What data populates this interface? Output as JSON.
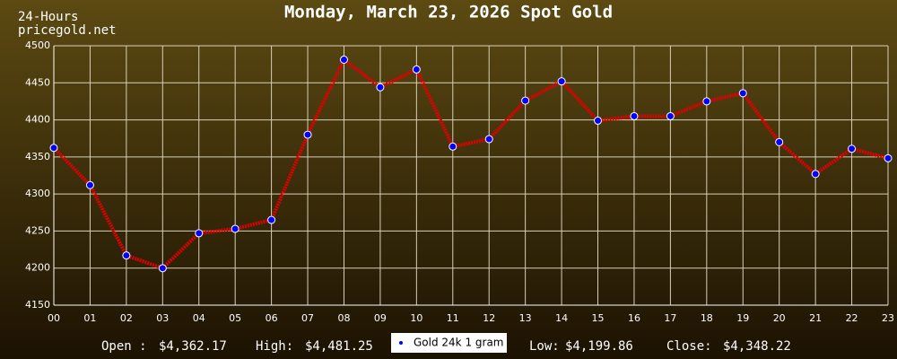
{
  "chart_data": {
    "type": "line",
    "title": "Monday, March 23, 2026 Spot Gold",
    "corner_texts": [
      "24-Hours",
      "pricegold.net"
    ],
    "categories": [
      "00",
      "01",
      "02",
      "03",
      "04",
      "05",
      "06",
      "07",
      "08",
      "09",
      "10",
      "11",
      "12",
      "13",
      "14",
      "15",
      "16",
      "17",
      "18",
      "19",
      "20",
      "21",
      "22",
      "23"
    ],
    "series": [
      {
        "name": "Gold 24k 1 gram",
        "color": "#e00000",
        "marker_color": "#0000ff",
        "values": [
          4362.17,
          4312,
          4217,
          4199.86,
          4247,
          4253,
          4265,
          4380,
          4481.25,
          4444,
          4468,
          4364,
          4374,
          4426,
          4452,
          4399,
          4405,
          4405,
          4425,
          4436,
          4370,
          4327,
          4361,
          4348.22
        ]
      }
    ],
    "ylim": [
      4150,
      4500
    ],
    "yticks": [
      4150,
      4200,
      4250,
      4300,
      4350,
      4400,
      4450,
      4500
    ],
    "grid": true,
    "legend": "bottom",
    "stats": [
      {
        "label": "Open :",
        "value": "$4,362.17"
      },
      {
        "label": "High:",
        "value": "$4,481.25"
      },
      {
        "label": "Low:",
        "value": "$4,199.86"
      },
      {
        "label": "Close:",
        "value": "$4,348.22"
      }
    ]
  }
}
